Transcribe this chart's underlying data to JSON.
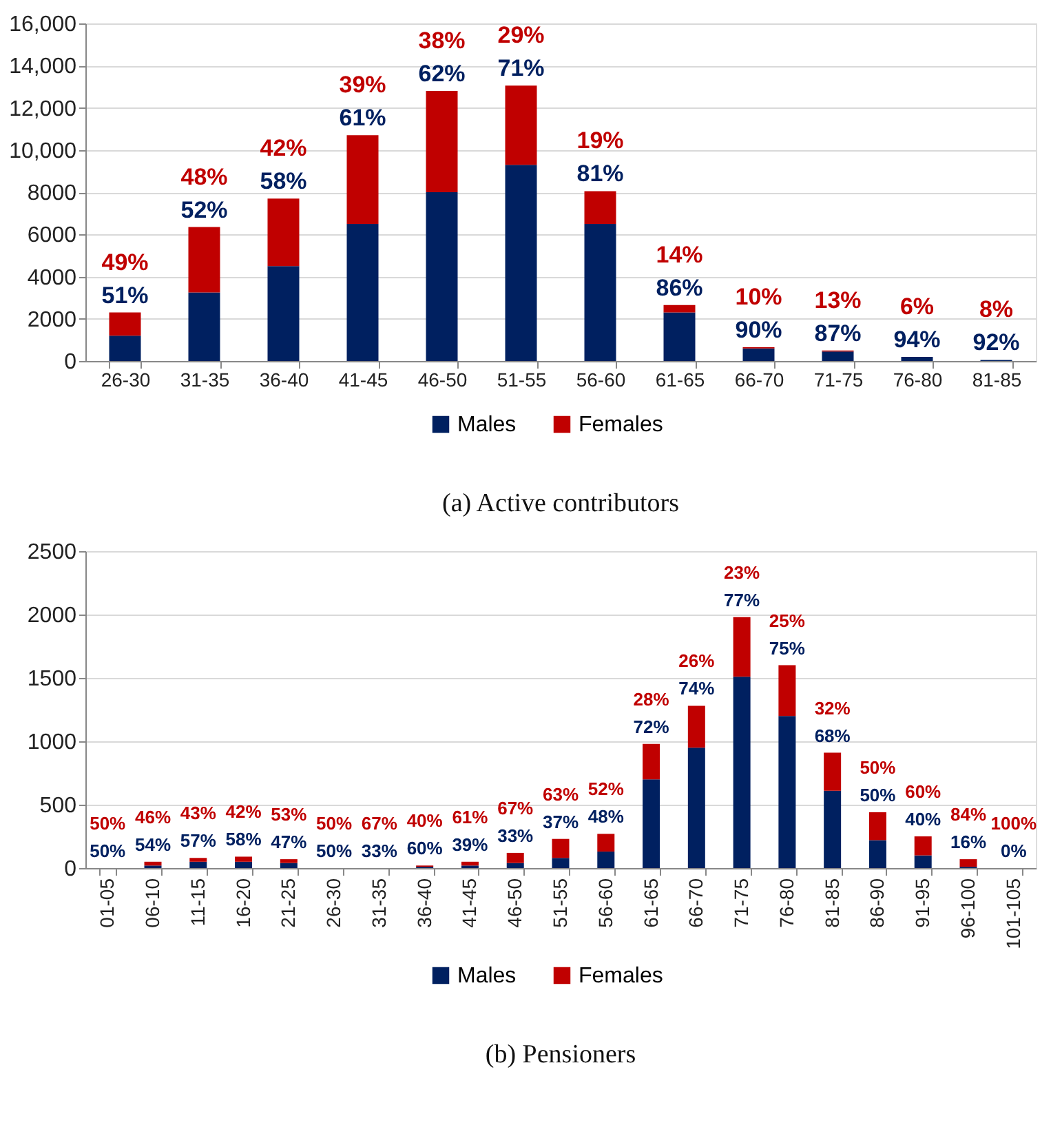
{
  "chart_data": [
    {
      "type": "bar",
      "title": "(a) Active contributors",
      "stacked": true,
      "legend": "bottom",
      "grid": "y",
      "categories": [
        "26-30",
        "31-35",
        "36-40",
        "41-45",
        "46-50",
        "51-55",
        "56-60",
        "61-65",
        "66-70",
        "71-75",
        "76-80",
        "81-85"
      ],
      "ylim": [
        0,
        16000
      ],
      "yticks": [
        0,
        2000,
        4000,
        6000,
        8000,
        {
          "value": 10000,
          "label": "10,000"
        },
        {
          "value": 12000,
          "label": "12,000"
        },
        {
          "value": 14000,
          "label": "14,000"
        },
        {
          "value": 16000,
          "label": "16,000"
        }
      ],
      "series": [
        {
          "name": "Males",
          "color": "#002060",
          "values": [
            1200,
            3250,
            4500,
            6500,
            8000,
            9300,
            6500,
            2300,
            600,
            450,
            200,
            50
          ]
        },
        {
          "name": "Females",
          "color": "#c00000",
          "values": [
            1100,
            3100,
            3200,
            4200,
            4800,
            3750,
            1550,
            350,
            50,
            50,
            0,
            0
          ]
        }
      ],
      "annotations": [
        {
          "text": "51%",
          "x": "26-30",
          "y": 2300
        },
        {
          "text": "49%",
          "x": "26-30",
          "y": 2300
        },
        {
          "text": "52%",
          "x": "31-35",
          "y": 6350
        },
        {
          "text": "48%",
          "x": "31-35",
          "y": 6350
        },
        {
          "text": "58%",
          "x": "36-40",
          "y": 7700
        },
        {
          "text": "42%",
          "x": "36-40",
          "y": 7700
        },
        {
          "text": "61%",
          "x": "41-45",
          "y": 10700
        },
        {
          "text": "39%",
          "x": "41-45",
          "y": 10700
        },
        {
          "text": "62%",
          "x": "46-50",
          "y": 12800
        },
        {
          "text": "38%",
          "x": "46-50",
          "y": 12800
        },
        {
          "text": "71%",
          "x": "51-55",
          "y": 13050
        },
        {
          "text": "29%",
          "x": "51-55",
          "y": 13050
        },
        {
          "text": "81%",
          "x": "56-60",
          "y": 8050
        },
        {
          "text": "19%",
          "x": "56-60",
          "y": 8050
        },
        {
          "text": "86%",
          "x": "61-65",
          "y": 2650
        },
        {
          "text": "14%",
          "x": "61-65",
          "y": 2650
        },
        {
          "text": "90%",
          "x": "66-70",
          "y": 650
        },
        {
          "text": "10%",
          "x": "66-70",
          "y": 650
        },
        {
          "text": "87%",
          "x": "71-75",
          "y": 500
        },
        {
          "text": "13%",
          "x": "71-75",
          "y": 500
        },
        {
          "text": "94%",
          "x": "76-80",
          "y": 200
        },
        {
          "text": "6%",
          "x": "76-80",
          "y": 200
        },
        {
          "text": "92%",
          "x": "81-85",
          "y": 50
        },
        {
          "text": "8%",
          "x": "81-85",
          "y": 50
        }
      ]
    },
    {
      "type": "bar",
      "title": "(b) Pensioners",
      "stacked": true,
      "legend": "bottom",
      "grid": "y",
      "categories": [
        "01-05",
        "06-10",
        "11-15",
        "16-20",
        "21-25",
        "26-30",
        "31-35",
        "36-40",
        "41-45",
        "46-50",
        "51-55",
        "56-60",
        "61-65",
        "66-70",
        "71-75",
        "76-80",
        "81-85",
        "86-90",
        "91-95",
        "96-100",
        "101-105"
      ],
      "ylim": [
        0,
        2500
      ],
      "yticks": [
        0,
        500,
        1000,
        1500,
        2000,
        2500
      ],
      "series": [
        {
          "name": "Males",
          "color": "#002060",
          "values": [
            0,
            20,
            50,
            50,
            40,
            0,
            0,
            10,
            20,
            40,
            80,
            130,
            700,
            950,
            1510,
            1200,
            610,
            220,
            100,
            10,
            0
          ]
        },
        {
          "name": "Females",
          "color": "#c00000",
          "values": [
            0,
            30,
            30,
            40,
            30,
            0,
            0,
            10,
            30,
            80,
            150,
            140,
            280,
            330,
            470,
            400,
            300,
            220,
            150,
            60,
            0
          ]
        }
      ],
      "annotations": [
        {
          "text": "50%",
          "x": "01-05",
          "y": 0
        },
        {
          "text": "50%",
          "x": "01-05",
          "y": 0
        },
        {
          "text": "54%",
          "x": "06-10",
          "y": 50
        },
        {
          "text": "46%",
          "x": "06-10",
          "y": 50
        },
        {
          "text": "57%",
          "x": "11-15",
          "y": 80
        },
        {
          "text": "43%",
          "x": "11-15",
          "y": 80
        },
        {
          "text": "58%",
          "x": "16-20",
          "y": 90
        },
        {
          "text": "42%",
          "x": "16-20",
          "y": 90
        },
        {
          "text": "47%",
          "x": "21-25",
          "y": 70
        },
        {
          "text": "53%",
          "x": "21-25",
          "y": 70
        },
        {
          "text": "50%",
          "x": "26-30",
          "y": 0
        },
        {
          "text": "50%",
          "x": "26-30",
          "y": 0
        },
        {
          "text": "33%",
          "x": "31-35",
          "y": 0
        },
        {
          "text": "67%",
          "x": "31-35",
          "y": 0
        },
        {
          "text": "60%",
          "x": "36-40",
          "y": 20
        },
        {
          "text": "40%",
          "x": "36-40",
          "y": 20
        },
        {
          "text": "39%",
          "x": "41-45",
          "y": 50
        },
        {
          "text": "61%",
          "x": "41-45",
          "y": 50
        },
        {
          "text": "33%",
          "x": "46-50",
          "y": 120
        },
        {
          "text": "67%",
          "x": "46-50",
          "y": 120
        },
        {
          "text": "37%",
          "x": "51-55",
          "y": 230
        },
        {
          "text": "63%",
          "x": "51-55",
          "y": 230
        },
        {
          "text": "48%",
          "x": "56-60",
          "y": 270
        },
        {
          "text": "52%",
          "x": "56-60",
          "y": 270
        },
        {
          "text": "72%",
          "x": "61-65",
          "y": 980
        },
        {
          "text": "28%",
          "x": "61-65",
          "y": 980
        },
        {
          "text": "74%",
          "x": "66-70",
          "y": 1280
        },
        {
          "text": "26%",
          "x": "66-70",
          "y": 1280
        },
        {
          "text": "77%",
          "x": "71-75",
          "y": 1980
        },
        {
          "text": "23%",
          "x": "71-75",
          "y": 1980
        },
        {
          "text": "75%",
          "x": "76-80",
          "y": 1600
        },
        {
          "text": "25%",
          "x": "76-80",
          "y": 1600
        },
        {
          "text": "68%",
          "x": "81-85",
          "y": 910
        },
        {
          "text": "32%",
          "x": "81-85",
          "y": 910
        },
        {
          "text": "50%",
          "x": "86-90",
          "y": 440
        },
        {
          "text": "50%",
          "x": "86-90",
          "y": 440
        },
        {
          "text": "40%",
          "x": "91-95",
          "y": 250
        },
        {
          "text": "60%",
          "x": "91-95",
          "y": 250
        },
        {
          "text": "16%",
          "x": "96-100",
          "y": 70
        },
        {
          "text": "84%",
          "x": "96-100",
          "y": 70
        },
        {
          "text": "0%",
          "x": "101-105",
          "y": 0
        },
        {
          "text": "100%",
          "x": "101-105",
          "y": 0
        }
      ]
    }
  ]
}
